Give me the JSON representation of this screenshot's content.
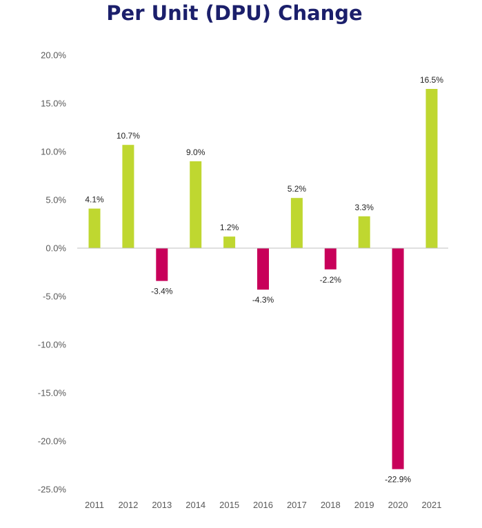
{
  "colors": {
    "positive": "#bfd730",
    "negative": "#c8005a",
    "axis": "#bfbfbf",
    "title": "#1b1f6b",
    "tick_text": "#595959",
    "label_text": "#222222"
  },
  "chart_data": {
    "type": "bar",
    "title": "Per Unit (DPU) Change",
    "xlabel": "",
    "ylabel": "",
    "categories": [
      "2011",
      "2012",
      "2013",
      "2014",
      "2015",
      "2016",
      "2017",
      "2018",
      "2019",
      "2020",
      "2021"
    ],
    "values": [
      4.1,
      10.7,
      -3.4,
      9.0,
      1.2,
      -4.3,
      5.2,
      -2.2,
      3.3,
      -22.9,
      16.5
    ],
    "data_labels": [
      "4.1%",
      "10.7%",
      "-3.4%",
      "9.0%",
      "1.2%",
      "-4.3%",
      "5.2%",
      "-2.2%",
      "3.3%",
      "-22.9%",
      "16.5%"
    ],
    "ylim": [
      -25,
      20
    ],
    "yticks": [
      20,
      15,
      10,
      5,
      0,
      -5,
      -10,
      -15,
      -20,
      -25
    ],
    "ytick_labels": [
      "20.0%",
      "15.0%",
      "10.0%",
      "5.0%",
      "0.0%",
      "-5.0%",
      "-10.0%",
      "-15.0%",
      "-20.0%",
      "-25.0%"
    ],
    "grid": false,
    "legend": "none"
  }
}
